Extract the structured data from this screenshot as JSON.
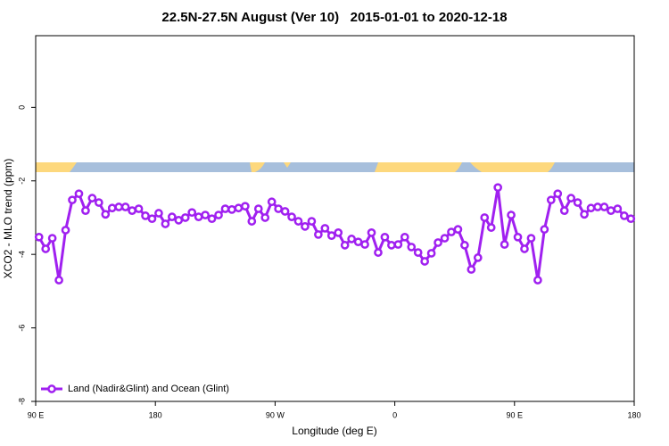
{
  "chart_data": {
    "type": "line",
    "title": "22.5N-27.5N August (Ver 10)   2015-01-01 to 2020-12-18",
    "xlabel": "Longitude (deg E)",
    "ylabel": "XCO2 - MLO trend (ppm)",
    "x": [
      92.5,
      97.5,
      102.5,
      107.5,
      112.5,
      117.5,
      122.5,
      127.5,
      132.5,
      137.5,
      142.5,
      147.5,
      152.5,
      157.5,
      162.5,
      167.5,
      172.5,
      177.5,
      182.5,
      187.5,
      192.5,
      197.5,
      202.5,
      207.5,
      212.5,
      217.5,
      222.5,
      227.5,
      232.5,
      237.5,
      242.5,
      247.5,
      252.5,
      257.5,
      262.5,
      267.5,
      272.5,
      277.5,
      282.5,
      287.5,
      292.5,
      297.5,
      302.5,
      307.5,
      312.5,
      317.5,
      322.5,
      327.5,
      332.5,
      337.5,
      342.5,
      347.5,
      352.5,
      357.5,
      362.5,
      367.5,
      372.5,
      377.5,
      382.5,
      387.5,
      392.5,
      397.5,
      402.5,
      407.5,
      412.5,
      417.5,
      422.5,
      427.5,
      432.5,
      437.5,
      442.5,
      447.5,
      452.5,
      457.5,
      462.5,
      467.5,
      472.5,
      477.5,
      482.5,
      487.5,
      492.5,
      497.5,
      502.5,
      507.5,
      512.5,
      517.5,
      522.5,
      527.5,
      532.5,
      537.5
    ],
    "series": [
      {
        "name": "Land (Nadir&Glint) and Ocean (Glint)",
        "color": "#a020f0",
        "values": [
          -3.53,
          -3.85,
          -3.56,
          -4.7,
          -3.34,
          -2.52,
          -2.35,
          -2.81,
          -2.47,
          -2.59,
          -2.91,
          -2.74,
          -2.71,
          -2.71,
          -2.81,
          -2.76,
          -2.95,
          -3.03,
          -2.88,
          -3.17,
          -2.98,
          -3.07,
          -3.0,
          -2.86,
          -2.98,
          -2.93,
          -3.03,
          -2.93,
          -2.76,
          -2.78,
          -2.74,
          -2.69,
          -3.1,
          -2.76,
          -3.0,
          -2.57,
          -2.76,
          -2.83,
          -2.98,
          -3.1,
          -3.24,
          -3.1,
          -3.46,
          -3.29,
          -3.49,
          -3.41,
          -3.75,
          -3.58,
          -3.66,
          -3.73,
          -3.41,
          -3.95,
          -3.53,
          -3.75,
          -3.73,
          -3.53,
          -3.8,
          -3.95,
          -4.19,
          -3.97,
          -3.68,
          -3.56,
          -3.39,
          -3.32,
          -3.75,
          -4.41,
          -4.09,
          -3.0,
          -3.27,
          -2.18,
          -3.73,
          -2.93,
          -3.53,
          -3.85,
          -3.56,
          -4.7,
          -3.32,
          -2.52,
          -2.35,
          -2.81,
          -2.47,
          -2.59,
          -2.91,
          -2.74,
          -2.71,
          -2.71,
          -2.81,
          -2.76,
          -2.95,
          -3.03
        ]
      }
    ],
    "xlim": [
      90,
      540
    ],
    "xticks": [
      {
        "value": 90,
        "label": "90 E"
      },
      180,
      {
        "value": 270,
        "label": "90 W"
      },
      {
        "value": 360,
        "label": "0"
      },
      {
        "value": 450,
        "label": "90 E"
      },
      {
        "value": 540,
        "label": "180"
      }
    ],
    "ylim": [
      -8,
      1.95
    ],
    "yticks": [
      -8,
      -6,
      -4,
      -2,
      0
    ],
    "legend": "bottom left"
  }
}
